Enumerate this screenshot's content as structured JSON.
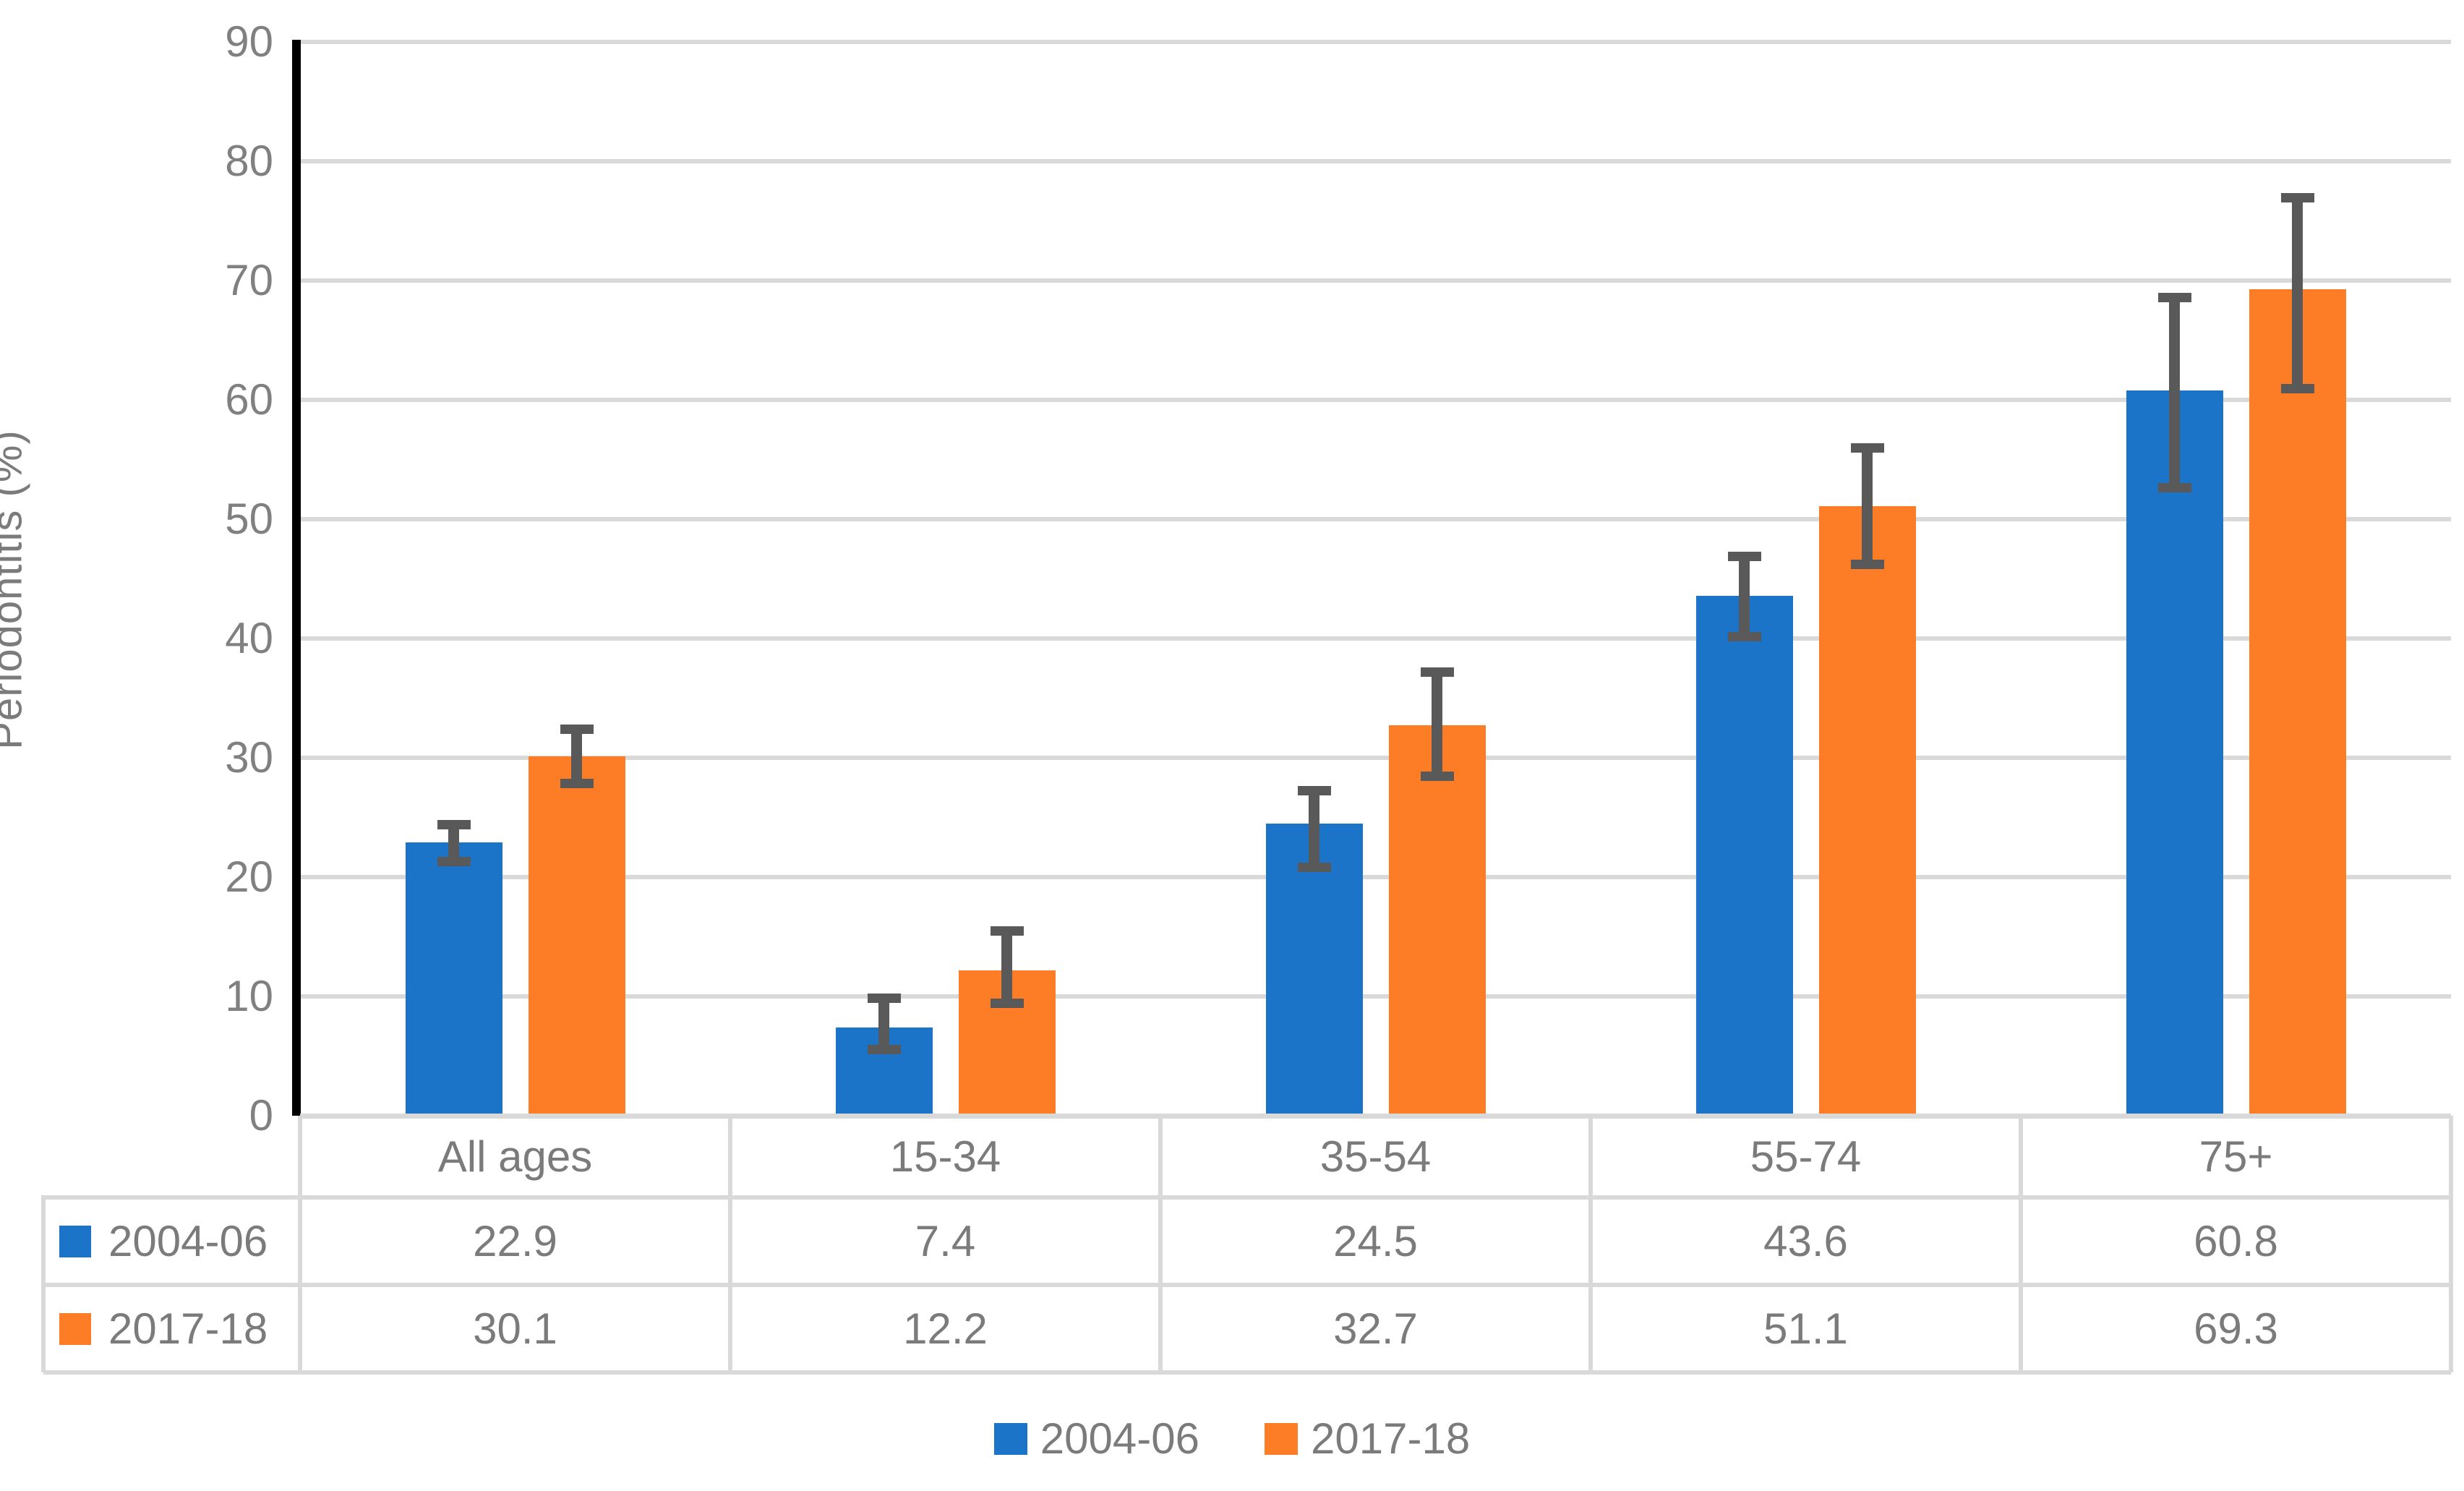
{
  "chart_data": {
    "type": "bar",
    "title": "",
    "xlabel": "",
    "ylabel": "Periodontitis (%)",
    "ylim": [
      0,
      90
    ],
    "ytick_step": 10,
    "yticks": [
      0,
      10,
      20,
      30,
      40,
      50,
      60,
      70,
      80,
      90
    ],
    "grid": true,
    "legend_position": "bottom",
    "categories": [
      "All ages",
      "15-34",
      "35-54",
      "55-74",
      "75+"
    ],
    "series": [
      {
        "name": "2004-06",
        "color": "#1b74c8",
        "values": [
          22.9,
          7.4,
          24.5,
          43.6,
          60.8
        ],
        "error_low": [
          21.3,
          5.5,
          20.8,
          40.1,
          52.6
        ],
        "error_high": [
          24.4,
          9.9,
          27.3,
          46.9,
          68.6
        ]
      },
      {
        "name": "2017-18",
        "color": "#fc7d26",
        "values": [
          30.1,
          12.2,
          32.7,
          51.1,
          69.3
        ],
        "error_low": [
          27.8,
          9.4,
          28.4,
          46.2,
          60.9
        ],
        "error_high": [
          32.4,
          15.5,
          37.2,
          56.0,
          77.0
        ]
      }
    ],
    "data_table": {
      "shown": true,
      "columns": [
        "All ages",
        "15-34",
        "35-54",
        "55-74",
        "75+"
      ],
      "rows": [
        {
          "label": "2004-06",
          "values": [
            "22.9",
            "7.4",
            "24.5",
            "43.6",
            "60.8"
          ]
        },
        {
          "label": "2017-18",
          "values": [
            "30.1",
            "12.2",
            "32.7",
            "51.1",
            "69.3"
          ]
        }
      ]
    },
    "legend": [
      "2004-06",
      "2017-18"
    ],
    "colors": {
      "series1": "#1b74c8",
      "series2": "#fc7d26",
      "error_bar": "#595959",
      "gridline": "#d9d9d9",
      "axis_line": "#000000",
      "text": "#7b7b7b",
      "background": "#ffffff"
    }
  }
}
